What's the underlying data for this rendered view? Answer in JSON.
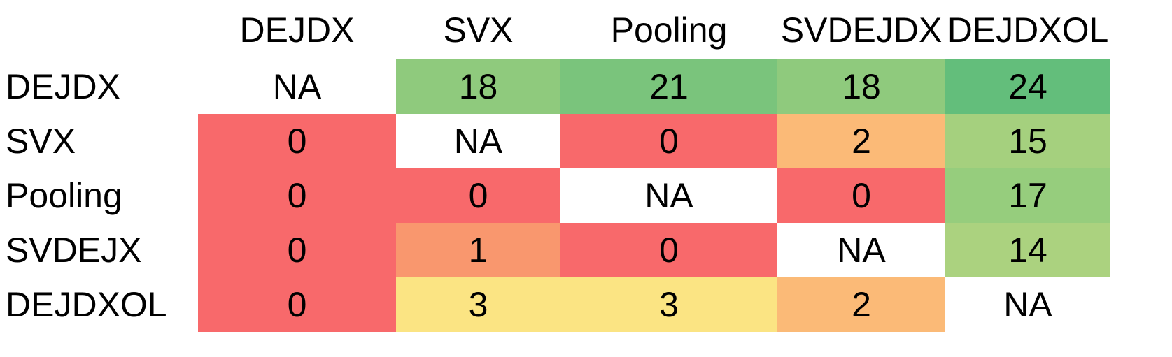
{
  "chart_data": {
    "type": "heatmap",
    "title": "",
    "na_label": "NA",
    "columns": [
      "DEJDX",
      "SVX",
      "Pooling",
      "SVDEJDX",
      "DEJDXOL"
    ],
    "rows": [
      "DEJDX",
      "SVX",
      "Pooling",
      "SVDEJX",
      "DEJDXOL"
    ],
    "values": [
      [
        "NA",
        18,
        21,
        18,
        24
      ],
      [
        0,
        "NA",
        0,
        2,
        15
      ],
      [
        0,
        0,
        "NA",
        0,
        17
      ],
      [
        0,
        1,
        0,
        "NA",
        14
      ],
      [
        0,
        3,
        3,
        2,
        "NA"
      ]
    ],
    "cell_colors": [
      [
        "#FFFFFF",
        "#8FCA7D",
        "#7AC47C",
        "#8FCA7D",
        "#63BE7B"
      ],
      [
        "#F8696B",
        "#FFFFFF",
        "#F8696B",
        "#FBBA77",
        "#A5D07E"
      ],
      [
        "#F8696B",
        "#F8696B",
        "#FFFFFF",
        "#F8696B",
        "#96CD7D"
      ],
      [
        "#F8696B",
        "#F9976E",
        "#F8696B",
        "#FFFFFF",
        "#ABD27F"
      ],
      [
        "#F8696B",
        "#FBE483",
        "#FBE483",
        "#FBBA77",
        "#FFFFFF"
      ]
    ],
    "color_scale": {
      "min_color": "#F8696B",
      "mid_color": "#FFEB84",
      "max_color": "#63BE7B",
      "min_value": 0,
      "max_value": 24
    },
    "grid": false,
    "legend": false
  }
}
